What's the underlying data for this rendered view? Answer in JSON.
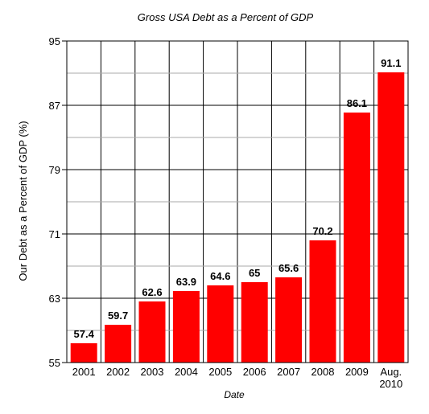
{
  "chart_data": {
    "type": "bar",
    "title": "Gross USA Debt as a Percent of GDP",
    "xlabel": "Date",
    "ylabel": "Our Debt as a Percent of GDP (%)",
    "categories": [
      "2001",
      "2002",
      "2003",
      "2004",
      "2005",
      "2006",
      "2007",
      "2008",
      "2009",
      "Aug.\n2010"
    ],
    "values": [
      57.4,
      59.7,
      62.6,
      63.9,
      64.6,
      65,
      65.6,
      70.2,
      86.1,
      91.1
    ],
    "value_labels": [
      "57.4",
      "59.7",
      "62.6",
      "63.9",
      "64.6",
      "65",
      "65.6",
      "70.2",
      "86.1",
      "91.1"
    ],
    "ylim": [
      55,
      95
    ],
    "yticks": [
      55,
      63,
      71,
      79,
      87,
      95
    ],
    "grid": true,
    "bar_color": "#ff0000"
  }
}
